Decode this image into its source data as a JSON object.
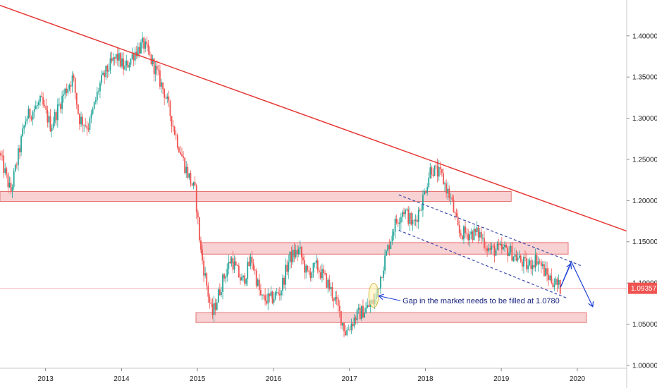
{
  "chart_data": {
    "type": "candlestick",
    "x_axis": {
      "ticks": [
        "2013",
        "2014",
        "2015",
        "2016",
        "2017",
        "2018",
        "2019",
        "2020"
      ],
      "range": [
        2012.4,
        2020.65
      ]
    },
    "y_axis": {
      "ticks": [
        "1.00000",
        "1.05000",
        "1.10000",
        "1.15000",
        "1.20000",
        "1.25000",
        "1.30000",
        "1.35000",
        "1.40000"
      ],
      "range": [
        0.9965,
        1.4435
      ]
    },
    "current_price": {
      "value": 1.09357,
      "label": "1.09357",
      "color": "#ef5350"
    },
    "colors": {
      "up": "#26a69a",
      "down": "#ef5350",
      "zone_fill": "#f6c6c8",
      "zone_border": "#e57373",
      "trendline": "#e53935",
      "channel": "#3949ab",
      "arrow": "#1e40d6"
    },
    "price_path": [
      [
        2012.4,
        1.258
      ],
      [
        2012.55,
        1.21
      ],
      [
        2012.75,
        1.3
      ],
      [
        2012.95,
        1.32
      ],
      [
        2013.08,
        1.29
      ],
      [
        2013.25,
        1.33
      ],
      [
        2013.37,
        1.35
      ],
      [
        2013.45,
        1.3
      ],
      [
        2013.58,
        1.29
      ],
      [
        2013.72,
        1.34
      ],
      [
        2013.83,
        1.36
      ],
      [
        2013.95,
        1.375
      ],
      [
        2014.05,
        1.36
      ],
      [
        2014.18,
        1.38
      ],
      [
        2014.3,
        1.39
      ],
      [
        2014.45,
        1.36
      ],
      [
        2014.58,
        1.33
      ],
      [
        2014.72,
        1.28
      ],
      [
        2014.85,
        1.24
      ],
      [
        2014.98,
        1.21
      ],
      [
        2015.05,
        1.14
      ],
      [
        2015.2,
        1.06
      ],
      [
        2015.33,
        1.1
      ],
      [
        2015.45,
        1.13
      ],
      [
        2015.6,
        1.1
      ],
      [
        2015.72,
        1.13
      ],
      [
        2015.85,
        1.08
      ],
      [
        2015.97,
        1.08
      ],
      [
        2016.1,
        1.09
      ],
      [
        2016.22,
        1.13
      ],
      [
        2016.35,
        1.14
      ],
      [
        2016.45,
        1.11
      ],
      [
        2016.58,
        1.12
      ],
      [
        2016.72,
        1.1
      ],
      [
        2016.82,
        1.08
      ],
      [
        2016.96,
        1.04
      ],
      [
        2017.1,
        1.06
      ],
      [
        2017.25,
        1.07
      ],
      [
        2017.35,
        1.08
      ],
      [
        2017.45,
        1.12
      ],
      [
        2017.6,
        1.17
      ],
      [
        2017.72,
        1.19
      ],
      [
        2017.85,
        1.17
      ],
      [
        2017.97,
        1.2
      ],
      [
        2018.08,
        1.24
      ],
      [
        2018.22,
        1.23
      ],
      [
        2018.35,
        1.2
      ],
      [
        2018.45,
        1.16
      ],
      [
        2018.58,
        1.16
      ],
      [
        2018.72,
        1.16
      ],
      [
        2018.85,
        1.14
      ],
      [
        2018.97,
        1.14
      ],
      [
        2019.1,
        1.14
      ],
      [
        2019.22,
        1.13
      ],
      [
        2019.35,
        1.12
      ],
      [
        2019.48,
        1.13
      ],
      [
        2019.6,
        1.11
      ],
      [
        2019.72,
        1.1
      ],
      [
        2019.78,
        1.094
      ]
    ],
    "zones": [
      {
        "x": [
          2012.4,
          2019.13
        ],
        "y": [
          1.199,
          1.211
        ]
      },
      {
        "x": [
          2015.05,
          2019.88
        ],
        "y": [
          1.135,
          1.149
        ]
      },
      {
        "x": [
          2014.98,
          2020.12
        ],
        "y": [
          1.052,
          1.064
        ]
      }
    ],
    "trendline": {
      "from": [
        2012.4,
        1.437
      ],
      "to": [
        2020.65,
        1.163
      ]
    },
    "channel_upper": {
      "from": [
        2017.65,
        1.207
      ],
      "to": [
        2020.05,
        1.121
      ]
    },
    "channel_lower": {
      "from": [
        2017.65,
        1.164
      ],
      "to": [
        2019.88,
        1.081
      ]
    },
    "gap_marker": {
      "x": 2017.32,
      "y": 1.085
    },
    "projection": {
      "start": [
        2019.78,
        1.095
      ],
      "peak": [
        2019.92,
        1.126
      ],
      "end": [
        2020.2,
        1.072
      ]
    },
    "annotations": [
      {
        "text": "Gap in the market needs to be filled at 1.0780",
        "x": 2017.7,
        "y": 1.0785
      }
    ]
  }
}
